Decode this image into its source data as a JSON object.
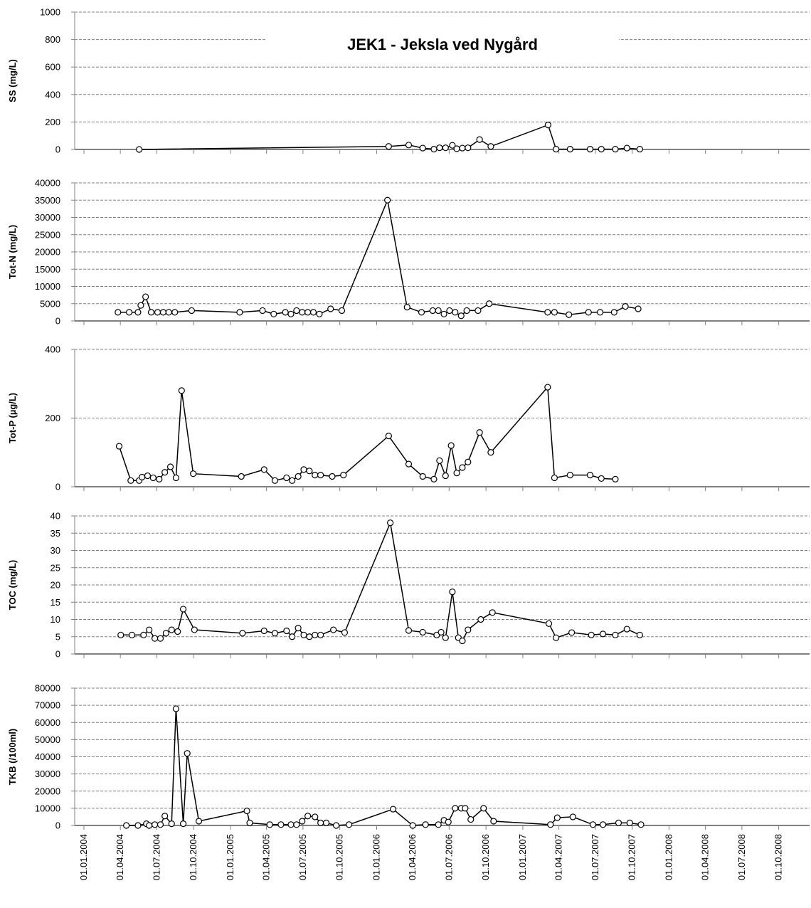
{
  "title": "JEK1 - Jeksla ved Nygård",
  "chart_data": [
    {
      "type": "line",
      "ylabel": "SS (mg/L)",
      "color": "#000000",
      "grid": true,
      "ylim": [
        0,
        1000
      ],
      "yticks": [
        0,
        200,
        400,
        600,
        800,
        1000
      ],
      "x": [
        "18.05.2004",
        "31.01.2006",
        "22.03.2006",
        "26.04.2006",
        "24.05.2006",
        "07.06.2006",
        "22.06.2006",
        "09.07.2006",
        "20.07.2006",
        "03.08.2006",
        "17.08.2006",
        "15.09.2006",
        "13.10.2006",
        "05.03.2007",
        "25.03.2007",
        "29.04.2007",
        "18.06.2007",
        "16.07.2007",
        "20.08.2007",
        "18.09.2007",
        "20.10.2007"
      ],
      "values": [
        0,
        22,
        32,
        10,
        2,
        12,
        12,
        30,
        5,
        10,
        12,
        72,
        22,
        178,
        2,
        2,
        2,
        2,
        2,
        10,
        2
      ]
    },
    {
      "type": "line",
      "ylabel": "Tot-N (mg/L)",
      "color": "#000000",
      "grid": true,
      "ylim": [
        0,
        40000
      ],
      "yticks": [
        0,
        5000,
        10000,
        15000,
        20000,
        25000,
        30000,
        35000,
        40000
      ],
      "x": [
        "26.03.2004",
        "23.04.2004",
        "15.05.2004",
        "22.05.2004",
        "03.06.2004",
        "17.06.2004",
        "03.07.2004",
        "17.07.2004",
        "31.07.2004",
        "15.08.2004",
        "26.09.2004",
        "24.01.2005",
        "22.03.2005",
        "19.04.2005",
        "18.05.2005",
        "01.06.2005",
        "15.06.2005",
        "29.06.2005",
        "13.07.2005",
        "27.07.2005",
        "11.08.2005",
        "08.09.2005",
        "06.10.2005",
        "28.01.2006",
        "18.03.2006",
        "23.04.2006",
        "21.05.2006",
        "04.06.2006",
        "18.06.2006",
        "02.07.2006",
        "16.07.2006",
        "31.07.2006",
        "14.08.2006",
        "11.09.2006",
        "09.10.2006",
        "04.03.2007",
        "21.03.2007",
        "26.04.2007",
        "14.06.2007",
        "13.07.2007",
        "17.08.2007",
        "14.09.2007",
        "16.10.2007"
      ],
      "values": [
        2500,
        2500,
        2500,
        4500,
        7000,
        2500,
        2500,
        2500,
        2500,
        2500,
        3000,
        2500,
        3000,
        2000,
        2500,
        2000,
        3000,
        2500,
        2500,
        2500,
        2000,
        3500,
        3000,
        35000,
        4000,
        2500,
        3000,
        3000,
        2000,
        3000,
        2500,
        1500,
        3000,
        3000,
        5000,
        2500,
        2500,
        1800,
        2500,
        2500,
        2500,
        4200,
        3500
      ]
    },
    {
      "type": "line",
      "ylabel": "Tot-P (µg/L)",
      "color": "#000000",
      "grid": true,
      "ylim": [
        0,
        400
      ],
      "yticks": [
        0,
        200,
        400
      ],
      "x": [
        "29.03.2004",
        "27.04.2004",
        "18.05.2004",
        "25.05.2004",
        "08.06.2004",
        "22.06.2004",
        "07.07.2004",
        "21.07.2004",
        "04.08.2004",
        "18.08.2004",
        "01.09.2004",
        "30.09.2004",
        "28.01.2005",
        "26.03.2005",
        "22.04.2005",
        "21.05.2005",
        "04.06.2005",
        "19.06.2005",
        "03.07.2005",
        "17.07.2005",
        "31.07.2005",
        "14.08.2005",
        "12.09.2005",
        "10.10.2005",
        "31.01.2006",
        "22.03.2006",
        "26.04.2006",
        "24.05.2006",
        "07.06.2006",
        "22.06.2006",
        "06.07.2006",
        "20.07.2006",
        "03.08.2006",
        "17.08.2006",
        "15.09.2006",
        "13.10.2006",
        "04.03.2007",
        "21.03.2007",
        "29.04.2007",
        "18.06.2007",
        "16.07.2007",
        "20.08.2007"
      ],
      "values": [
        118,
        18,
        18,
        28,
        32,
        26,
        22,
        42,
        58,
        26,
        280,
        38,
        30,
        50,
        18,
        26,
        18,
        30,
        50,
        46,
        34,
        34,
        30,
        34,
        148,
        66,
        30,
        22,
        76,
        32,
        120,
        40,
        56,
        72,
        158,
        100,
        290,
        26,
        34,
        34,
        24,
        22
      ]
    },
    {
      "type": "line",
      "ylabel": "TOC (mg/L)",
      "color": "#000000",
      "grid": true,
      "ylim": [
        0,
        40
      ],
      "yticks": [
        0,
        5,
        10,
        15,
        20,
        25,
        30,
        35,
        40
      ],
      "x": [
        "02.04.2004",
        "30.04.2004",
        "29.05.2004",
        "12.06.2004",
        "26.06.2004",
        "10.07.2004",
        "24.07.2004",
        "07.08.2004",
        "22.08.2004",
        "05.09.2004",
        "03.10.2004",
        "31.01.2005",
        "26.03.2005",
        "22.04.2005",
        "21.05.2005",
        "04.06.2005",
        "19.06.2005",
        "03.07.2005",
        "17.07.2005",
        "31.07.2005",
        "14.08.2005",
        "15.09.2005",
        "13.10.2005",
        "04.02.2006",
        "22.03.2006",
        "26.04.2006",
        "31.05.2006",
        "11.06.2006",
        "22.06.2006",
        "09.07.2006",
        "24.07.2006",
        "03.08.2006",
        "17.08.2006",
        "18.09.2006",
        "17.10.2006",
        "07.03.2007",
        "25.03.2007",
        "03.05.2007",
        "21.06.2007",
        "20.07.2007",
        "20.08.2007",
        "18.09.2007",
        "20.10.2007"
      ],
      "values": [
        5.5,
        5.5,
        5.5,
        7,
        4.5,
        4.5,
        6,
        7,
        6.5,
        13,
        7,
        6,
        6.7,
        6,
        6.7,
        5,
        7.5,
        5.5,
        5,
        5.5,
        5.5,
        7,
        6.2,
        38,
        6.8,
        6.3,
        5.5,
        6.3,
        4.7,
        18,
        4.7,
        3.8,
        7,
        10,
        12,
        8.8,
        4.7,
        6.2,
        5.5,
        5.8,
        5.5,
        7.2,
        5.5
      ]
    },
    {
      "type": "line",
      "ylabel": "TKB (/100ml)",
      "color": "#000000",
      "grid": true,
      "ylim": [
        0,
        80000
      ],
      "yticks": [
        0,
        10000,
        20000,
        30000,
        40000,
        50000,
        60000,
        70000,
        80000
      ],
      "xlim": [
        "09.12.2003",
        "17.12.2008"
      ],
      "xticks": [
        "01.01.2004",
        "01.04.2004",
        "01.07.2004",
        "01.10.2004",
        "01.01.2005",
        "01.04.2005",
        "01.07.2005",
        "01.10.2005",
        "01.01.2006",
        "01.04.2006",
        "01.07.2006",
        "01.10.2006",
        "01.01.2007",
        "01.04.2007",
        "01.07.2007",
        "01.10.2007",
        "01.01.2008",
        "01.04.2008",
        "01.07.2008",
        "01.10.2008"
      ],
      "x": [
        "16.04.2004",
        "15.05.2004",
        "05.06.2004",
        "12.06.2004",
        "26.06.2004",
        "10.07.2004",
        "21.07.2004",
        "07.08.2004",
        "18.08.2004",
        "05.09.2004",
        "15.09.2004",
        "14.10.2004",
        "11.02.2005",
        "18.02.2005",
        "09.04.2005",
        "07.05.2005",
        "01.06.2005",
        "15.06.2005",
        "29.06.2005",
        "13.07.2005",
        "31.07.2005",
        "14.08.2005",
        "28.08.2005",
        "22.09.2005",
        "24.10.2005",
        "11.02.2006",
        "01.04.2006",
        "03.05.2006",
        "04.06.2006",
        "18.06.2006",
        "29.06.2006",
        "16.07.2006",
        "31.07.2006",
        "10.08.2006",
        "24.08.2006",
        "25.09.2006",
        "20.10.2006",
        "11.03.2007",
        "28.03.2007",
        "06.05.2007",
        "25.06.2007",
        "20.07.2007",
        "28.08.2007",
        "25.09.2007",
        "23.10.2007"
      ],
      "values": [
        0,
        0,
        1000,
        0,
        500,
        500,
        5500,
        1000,
        68000,
        1000,
        42000,
        2500,
        8500,
        1500,
        500,
        500,
        500,
        500,
        2500,
        5500,
        5000,
        1500,
        1500,
        0,
        500,
        9500,
        0,
        500,
        500,
        3000,
        2000,
        10000,
        10000,
        10000,
        3500,
        10000,
        2500,
        500,
        4500,
        5000,
        500,
        500,
        1500,
        1500,
        500
      ]
    }
  ]
}
